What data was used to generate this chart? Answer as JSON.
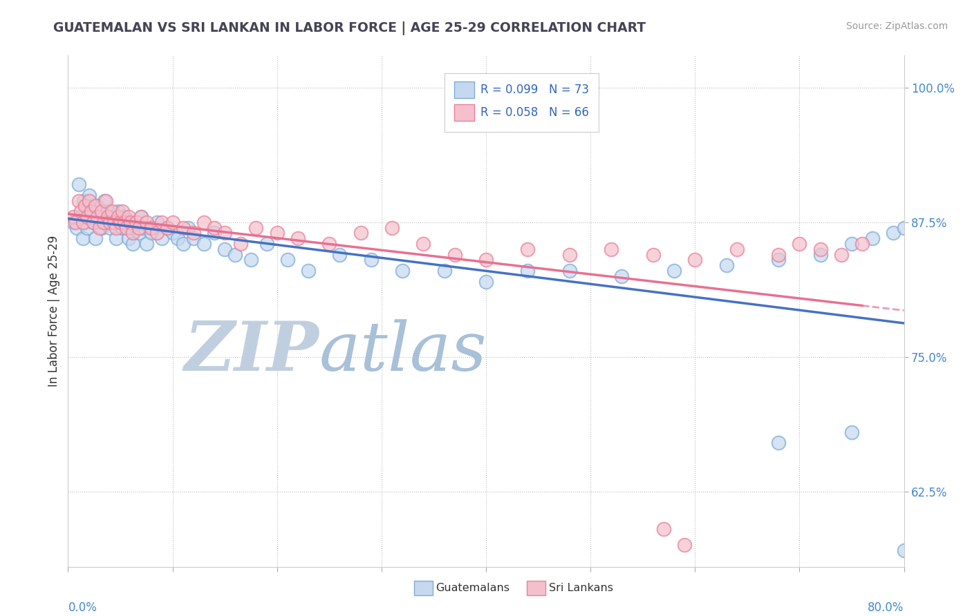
{
  "title": "GUATEMALAN VS SRI LANKAN IN LABOR FORCE | AGE 25-29 CORRELATION CHART",
  "source": "Source: ZipAtlas.com",
  "ylabel": "In Labor Force | Age 25-29",
  "legend_labels": [
    "Guatemalans",
    "Sri Lankans"
  ],
  "r_guatemalan": 0.099,
  "n_guatemalan": 73,
  "r_sri_lankan": 0.058,
  "n_sri_lankan": 66,
  "xmin": 0.0,
  "xmax": 0.8,
  "ymin": 0.555,
  "ymax": 1.03,
  "yticks": [
    0.625,
    0.75,
    0.875,
    1.0
  ],
  "ytick_labels": [
    "62.5%",
    "75.0%",
    "87.5%",
    "100.0%"
  ],
  "color_guatemalan_fill": "#c5d8f0",
  "color_guatemalan_edge": "#7aacd6",
  "color_sri_lankan_fill": "#f5c0cc",
  "color_sri_lankan_edge": "#e8809a",
  "trendline_guatemalan": "#4472c4",
  "trendline_sri_lankan": "#e87090",
  "watermark_zip_color": "#c8d8e8",
  "watermark_atlas_color": "#a0b8d0",
  "guatemalan_x": [
    0.005,
    0.008,
    0.01,
    0.012,
    0.014,
    0.015,
    0.016,
    0.018,
    0.02,
    0.022,
    0.025,
    0.026,
    0.028,
    0.03,
    0.032,
    0.034,
    0.035,
    0.036,
    0.038,
    0.04,
    0.042,
    0.044,
    0.046,
    0.048,
    0.05,
    0.052,
    0.054,
    0.056,
    0.058,
    0.06,
    0.062,
    0.065,
    0.068,
    0.07,
    0.072,
    0.075,
    0.078,
    0.08,
    0.085,
    0.09,
    0.095,
    0.1,
    0.105,
    0.11,
    0.115,
    0.12,
    0.13,
    0.14,
    0.15,
    0.16,
    0.175,
    0.19,
    0.21,
    0.23,
    0.26,
    0.29,
    0.32,
    0.36,
    0.4,
    0.44,
    0.48,
    0.53,
    0.58,
    0.63,
    0.68,
    0.72,
    0.75,
    0.77,
    0.79,
    0.8,
    0.68,
    0.75,
    0.8
  ],
  "guatemalan_y": [
    0.875,
    0.87,
    0.91,
    0.88,
    0.86,
    0.895,
    0.875,
    0.87,
    0.9,
    0.885,
    0.875,
    0.86,
    0.89,
    0.875,
    0.87,
    0.88,
    0.895,
    0.875,
    0.885,
    0.87,
    0.88,
    0.875,
    0.86,
    0.885,
    0.875,
    0.87,
    0.88,
    0.875,
    0.86,
    0.87,
    0.855,
    0.875,
    0.865,
    0.88,
    0.87,
    0.855,
    0.87,
    0.865,
    0.875,
    0.86,
    0.87,
    0.865,
    0.86,
    0.855,
    0.87,
    0.86,
    0.855,
    0.865,
    0.85,
    0.845,
    0.84,
    0.855,
    0.84,
    0.83,
    0.845,
    0.84,
    0.83,
    0.83,
    0.82,
    0.83,
    0.83,
    0.825,
    0.83,
    0.835,
    0.84,
    0.845,
    0.855,
    0.86,
    0.865,
    0.87,
    0.67,
    0.68,
    0.57
  ],
  "sri_lankan_x": [
    0.005,
    0.007,
    0.01,
    0.012,
    0.014,
    0.016,
    0.018,
    0.02,
    0.022,
    0.024,
    0.026,
    0.028,
    0.03,
    0.032,
    0.034,
    0.036,
    0.038,
    0.04,
    0.042,
    0.044,
    0.046,
    0.048,
    0.05,
    0.052,
    0.054,
    0.056,
    0.058,
    0.06,
    0.062,
    0.065,
    0.068,
    0.07,
    0.075,
    0.08,
    0.085,
    0.09,
    0.095,
    0.1,
    0.11,
    0.12,
    0.13,
    0.14,
    0.15,
    0.165,
    0.18,
    0.2,
    0.22,
    0.25,
    0.28,
    0.31,
    0.34,
    0.37,
    0.4,
    0.44,
    0.48,
    0.52,
    0.56,
    0.6,
    0.64,
    0.68,
    0.7,
    0.72,
    0.74,
    0.76,
    0.57,
    0.59
  ],
  "sri_lankan_y": [
    0.88,
    0.875,
    0.895,
    0.885,
    0.875,
    0.89,
    0.88,
    0.895,
    0.885,
    0.875,
    0.89,
    0.88,
    0.87,
    0.885,
    0.875,
    0.895,
    0.88,
    0.875,
    0.885,
    0.875,
    0.87,
    0.88,
    0.875,
    0.885,
    0.875,
    0.87,
    0.88,
    0.875,
    0.865,
    0.875,
    0.87,
    0.88,
    0.875,
    0.87,
    0.865,
    0.875,
    0.87,
    0.875,
    0.87,
    0.865,
    0.875,
    0.87,
    0.865,
    0.855,
    0.87,
    0.865,
    0.86,
    0.855,
    0.865,
    0.87,
    0.855,
    0.845,
    0.84,
    0.85,
    0.845,
    0.85,
    0.845,
    0.84,
    0.85,
    0.845,
    0.855,
    0.85,
    0.845,
    0.855,
    0.59,
    0.575
  ]
}
